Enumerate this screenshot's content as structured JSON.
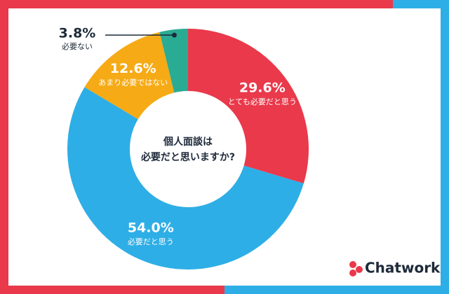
{
  "chart_data": {
    "type": "donut",
    "center_text": [
      "個人面談は",
      "必要だと思いますか?"
    ],
    "categories": [
      "とても必要だと思う",
      "必要だと思う",
      "あまり必要ではない",
      "必要ない"
    ],
    "values": [
      29.6,
      54.0,
      12.6,
      3.8
    ],
    "value_labels": [
      "29.6%",
      "54.0%",
      "12.6%",
      "3.8%"
    ],
    "colors": [
      "#e9394b",
      "#2eaee6",
      "#f6aa15",
      "#2aab93"
    ],
    "logo": "Chatwork"
  }
}
